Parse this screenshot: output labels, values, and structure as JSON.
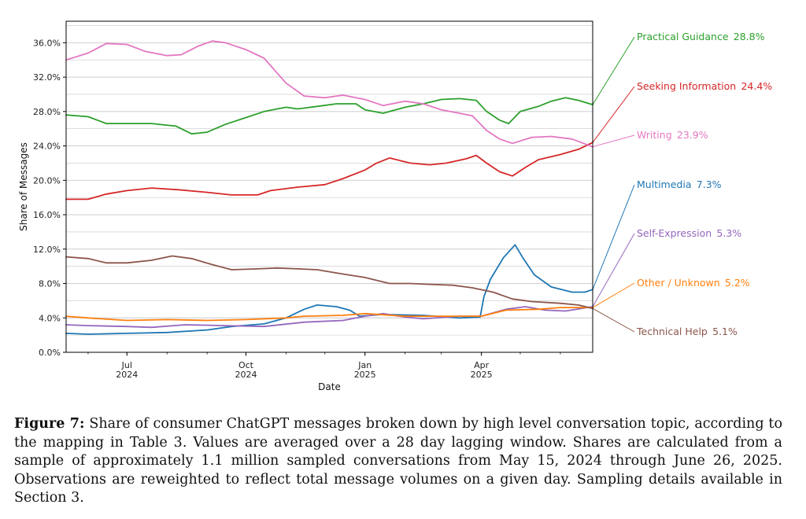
{
  "colors": {
    "grid": "#c8c8c8",
    "axis": "#000000"
  },
  "chart_data": {
    "type": "line",
    "xlabel": "Date",
    "ylabel": "Share of Messages",
    "x_range": [
      "2024-05-15",
      "2025-06-26"
    ],
    "ylim": [
      0,
      38.5
    ],
    "y_ticks": [
      "0.0%",
      "4.0%",
      "8.0%",
      "12.0%",
      "16.0%",
      "20.0%",
      "24.0%",
      "28.0%",
      "32.0%",
      "36.0%"
    ],
    "y_tick_values": [
      0,
      4,
      8,
      12,
      16,
      20,
      24,
      28,
      32,
      36
    ],
    "x_ticks": [
      {
        "date": "2024-07-01",
        "line1": "Jul",
        "line2": "2024"
      },
      {
        "date": "2024-10-01",
        "line1": "Oct",
        "line2": "2024"
      },
      {
        "date": "2025-01-01",
        "line1": "Jan",
        "line2": "2025"
      },
      {
        "date": "2025-04-01",
        "line1": "Apr",
        "line2": "2025"
      }
    ],
    "grid": "horizontal",
    "series": [
      {
        "name": "Practical Guidance",
        "end_label": "28.8%",
        "color": "#2ca02c",
        "points": [
          [
            "2024-05-15",
            27.6
          ],
          [
            "2024-06-01",
            27.4
          ],
          [
            "2024-06-15",
            26.6
          ],
          [
            "2024-07-01",
            26.6
          ],
          [
            "2024-07-20",
            26.6
          ],
          [
            "2024-08-08",
            26.3
          ],
          [
            "2024-08-20",
            25.4
          ],
          [
            "2024-09-01",
            25.6
          ],
          [
            "2024-09-15",
            26.5
          ],
          [
            "2024-10-01",
            27.3
          ],
          [
            "2024-10-15",
            28.0
          ],
          [
            "2024-11-01",
            28.5
          ],
          [
            "2024-11-10",
            28.3
          ],
          [
            "2024-11-25",
            28.6
          ],
          [
            "2024-12-10",
            28.9
          ],
          [
            "2024-12-25",
            28.9
          ],
          [
            "2025-01-01",
            28.2
          ],
          [
            "2025-01-15",
            27.8
          ],
          [
            "2025-02-01",
            28.5
          ],
          [
            "2025-02-15",
            28.9
          ],
          [
            "2025-03-01",
            29.4
          ],
          [
            "2025-03-15",
            29.5
          ],
          [
            "2025-03-28",
            29.3
          ],
          [
            "2025-04-05",
            28.0
          ],
          [
            "2025-04-15",
            27.0
          ],
          [
            "2025-04-22",
            26.6
          ],
          [
            "2025-05-01",
            28.0
          ],
          [
            "2025-05-15",
            28.6
          ],
          [
            "2025-05-25",
            29.2
          ],
          [
            "2025-06-05",
            29.6
          ],
          [
            "2025-06-15",
            29.3
          ],
          [
            "2025-06-26",
            28.8
          ]
        ]
      },
      {
        "name": "Seeking Information",
        "end_label": "24.4%",
        "color": "#d62728",
        "points": [
          [
            "2024-05-15",
            17.8
          ],
          [
            "2024-06-01",
            17.8
          ],
          [
            "2024-06-15",
            18.4
          ],
          [
            "2024-07-01",
            18.8
          ],
          [
            "2024-07-20",
            19.1
          ],
          [
            "2024-08-10",
            18.9
          ],
          [
            "2024-09-01",
            18.6
          ],
          [
            "2024-09-20",
            18.3
          ],
          [
            "2024-10-10",
            18.3
          ],
          [
            "2024-10-20",
            18.8
          ],
          [
            "2024-11-10",
            19.2
          ],
          [
            "2024-12-01",
            19.5
          ],
          [
            "2024-12-15",
            20.2
          ],
          [
            "2025-01-01",
            21.2
          ],
          [
            "2025-01-10",
            22.0
          ],
          [
            "2025-01-20",
            22.6
          ],
          [
            "2025-02-05",
            22.0
          ],
          [
            "2025-02-20",
            21.8
          ],
          [
            "2025-03-05",
            22.0
          ],
          [
            "2025-03-20",
            22.5
          ],
          [
            "2025-03-28",
            22.9
          ],
          [
            "2025-04-05",
            22.0
          ],
          [
            "2025-04-15",
            21.0
          ],
          [
            "2025-04-25",
            20.5
          ],
          [
            "2025-05-05",
            21.5
          ],
          [
            "2025-05-15",
            22.4
          ],
          [
            "2025-06-01",
            23.0
          ],
          [
            "2025-06-15",
            23.6
          ],
          [
            "2025-06-26",
            24.4
          ]
        ]
      },
      {
        "name": "Writing",
        "end_label": "23.9%",
        "color": "#e377c2",
        "points": [
          [
            "2024-05-15",
            34.0
          ],
          [
            "2024-06-01",
            34.8
          ],
          [
            "2024-06-15",
            35.9
          ],
          [
            "2024-07-01",
            35.8
          ],
          [
            "2024-07-15",
            35.0
          ],
          [
            "2024-08-01",
            34.5
          ],
          [
            "2024-08-12",
            34.6
          ],
          [
            "2024-08-25",
            35.6
          ],
          [
            "2024-09-05",
            36.2
          ],
          [
            "2024-09-15",
            36.0
          ],
          [
            "2024-10-01",
            35.2
          ],
          [
            "2024-10-15",
            34.2
          ],
          [
            "2024-11-01",
            31.3
          ],
          [
            "2024-11-15",
            29.8
          ],
          [
            "2024-12-01",
            29.6
          ],
          [
            "2024-12-15",
            29.9
          ],
          [
            "2025-01-01",
            29.4
          ],
          [
            "2025-01-15",
            28.7
          ],
          [
            "2025-02-01",
            29.2
          ],
          [
            "2025-02-15",
            28.9
          ],
          [
            "2025-03-01",
            28.2
          ],
          [
            "2025-03-15",
            27.8
          ],
          [
            "2025-03-25",
            27.5
          ],
          [
            "2025-04-05",
            25.8
          ],
          [
            "2025-04-15",
            24.8
          ],
          [
            "2025-04-25",
            24.3
          ],
          [
            "2025-05-10",
            25.0
          ],
          [
            "2025-05-25",
            25.1
          ],
          [
            "2025-06-10",
            24.8
          ],
          [
            "2025-06-26",
            23.9
          ]
        ]
      },
      {
        "name": "Multimedia",
        "end_label": "7.3%",
        "color": "#1f77b4",
        "points": [
          [
            "2024-05-15",
            2.2
          ],
          [
            "2024-06-01",
            2.1
          ],
          [
            "2024-07-01",
            2.2
          ],
          [
            "2024-08-01",
            2.3
          ],
          [
            "2024-09-01",
            2.6
          ],
          [
            "2024-09-20",
            3.0
          ],
          [
            "2024-10-15",
            3.3
          ],
          [
            "2024-11-01",
            4.0
          ],
          [
            "2024-11-15",
            5.0
          ],
          [
            "2024-11-25",
            5.5
          ],
          [
            "2024-12-10",
            5.3
          ],
          [
            "2024-12-20",
            4.9
          ],
          [
            "2024-12-28",
            4.2
          ],
          [
            "2025-01-15",
            4.4
          ],
          [
            "2025-02-15",
            4.3
          ],
          [
            "2025-03-15",
            4.0
          ],
          [
            "2025-03-31",
            4.1
          ],
          [
            "2025-04-03",
            6.5
          ],
          [
            "2025-04-08",
            8.5
          ],
          [
            "2025-04-18",
            11.0
          ],
          [
            "2025-04-27",
            12.5
          ],
          [
            "2025-05-03",
            11.0
          ],
          [
            "2025-05-12",
            9.0
          ],
          [
            "2025-05-25",
            7.6
          ],
          [
            "2025-06-10",
            7.0
          ],
          [
            "2025-06-20",
            7.0
          ],
          [
            "2025-06-26",
            7.3
          ]
        ]
      },
      {
        "name": "Self-Expression",
        "end_label": "5.3%",
        "color": "#9467bd",
        "points": [
          [
            "2024-05-15",
            3.2
          ],
          [
            "2024-06-01",
            3.1
          ],
          [
            "2024-07-01",
            3.0
          ],
          [
            "2024-07-20",
            2.9
          ],
          [
            "2024-08-15",
            3.2
          ],
          [
            "2024-09-15",
            3.1
          ],
          [
            "2024-10-15",
            3.0
          ],
          [
            "2024-11-15",
            3.5
          ],
          [
            "2024-12-15",
            3.7
          ],
          [
            "2025-01-01",
            4.2
          ],
          [
            "2025-01-15",
            4.5
          ],
          [
            "2025-02-01",
            4.1
          ],
          [
            "2025-02-15",
            3.9
          ],
          [
            "2025-03-15",
            4.2
          ],
          [
            "2025-04-01",
            4.2
          ],
          [
            "2025-04-20",
            5.0
          ],
          [
            "2025-05-05",
            5.3
          ],
          [
            "2025-05-20",
            4.9
          ],
          [
            "2025-06-05",
            4.8
          ],
          [
            "2025-06-26",
            5.3
          ]
        ]
      },
      {
        "name": "Other / Unknown",
        "end_label": "5.2%",
        "color": "#ff7f0e",
        "points": [
          [
            "2024-05-15",
            4.2
          ],
          [
            "2024-06-01",
            4.0
          ],
          [
            "2024-07-01",
            3.7
          ],
          [
            "2024-08-01",
            3.8
          ],
          [
            "2024-09-01",
            3.7
          ],
          [
            "2024-10-01",
            3.8
          ],
          [
            "2024-11-01",
            4.0
          ],
          [
            "2024-11-15",
            4.2
          ],
          [
            "2024-12-15",
            4.3
          ],
          [
            "2025-01-01",
            4.5
          ],
          [
            "2025-02-01",
            4.2
          ],
          [
            "2025-03-01",
            4.2
          ],
          [
            "2025-04-01",
            4.2
          ],
          [
            "2025-04-20",
            4.9
          ],
          [
            "2025-05-15",
            5.0
          ],
          [
            "2025-06-01",
            5.2
          ],
          [
            "2025-06-26",
            5.2
          ]
        ]
      },
      {
        "name": "Technical Help",
        "end_label": "5.1%",
        "color": "#8c564b",
        "points": [
          [
            "2024-05-15",
            11.1
          ],
          [
            "2024-06-01",
            10.9
          ],
          [
            "2024-06-15",
            10.4
          ],
          [
            "2024-07-01",
            10.4
          ],
          [
            "2024-07-20",
            10.7
          ],
          [
            "2024-08-05",
            11.2
          ],
          [
            "2024-08-20",
            10.9
          ],
          [
            "2024-09-05",
            10.2
          ],
          [
            "2024-09-20",
            9.6
          ],
          [
            "2024-10-10",
            9.7
          ],
          [
            "2024-10-25",
            9.8
          ],
          [
            "2024-11-10",
            9.7
          ],
          [
            "2024-11-25",
            9.6
          ],
          [
            "2024-12-15",
            9.1
          ],
          [
            "2025-01-01",
            8.7
          ],
          [
            "2025-01-20",
            8.0
          ],
          [
            "2025-02-05",
            8.0
          ],
          [
            "2025-02-20",
            7.9
          ],
          [
            "2025-03-10",
            7.8
          ],
          [
            "2025-03-25",
            7.5
          ],
          [
            "2025-04-10",
            7.0
          ],
          [
            "2025-04-25",
            6.2
          ],
          [
            "2025-05-10",
            5.9
          ],
          [
            "2025-06-01",
            5.7
          ],
          [
            "2025-06-15",
            5.5
          ],
          [
            "2025-06-26",
            5.1
          ]
        ]
      }
    ]
  },
  "caption": {
    "label": "Figure 7:",
    "text": "Share of consumer ChatGPT messages broken down by high level conversation topic, according to the mapping in Table 3. Values are averaged over a 28 day lagging window. Shares are calculated from a sample of approximately 1.1 million sampled conversations from May 15, 2024 through June 26, 2025. Observations are reweighted to reflect total message volumes on a given day. Sampling details available in Section 3."
  }
}
